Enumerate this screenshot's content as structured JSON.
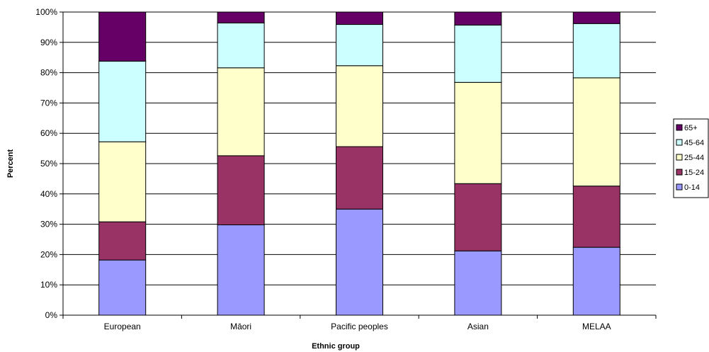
{
  "chart_data": {
    "type": "bar",
    "stacked": true,
    "categories": [
      "European",
      "Māori",
      "Pacific peoples",
      "Asian",
      "MELAA"
    ],
    "series": [
      {
        "name": "0-14",
        "color": "#9999ff",
        "values": [
          18.2,
          29.8,
          35.0,
          21.2,
          22.4
        ]
      },
      {
        "name": "15-24",
        "color": "#993366",
        "values": [
          12.6,
          22.8,
          20.6,
          22.2,
          20.2
        ]
      },
      {
        "name": "25-44",
        "color": "#ffffcc",
        "values": [
          26.4,
          29.0,
          26.7,
          33.4,
          35.7
        ]
      },
      {
        "name": "45-64",
        "color": "#ccffff",
        "values": [
          26.6,
          14.8,
          13.6,
          18.9,
          17.9
        ]
      },
      {
        "name": "65+",
        "color": "#660066",
        "values": [
          16.2,
          3.6,
          4.1,
          4.3,
          3.8
        ]
      }
    ],
    "xlabel": "Ethnic group",
    "ylabel": "Percent",
    "ylim": [
      0,
      100
    ],
    "yticks": [
      "0%",
      "10%",
      "20%",
      "30%",
      "40%",
      "50%",
      "60%",
      "70%",
      "80%",
      "90%",
      "100%"
    ],
    "grid": true,
    "legend_position": "right",
    "legend_order": [
      "65+",
      "45-64",
      "25-44",
      "15-24",
      "0-14"
    ]
  }
}
